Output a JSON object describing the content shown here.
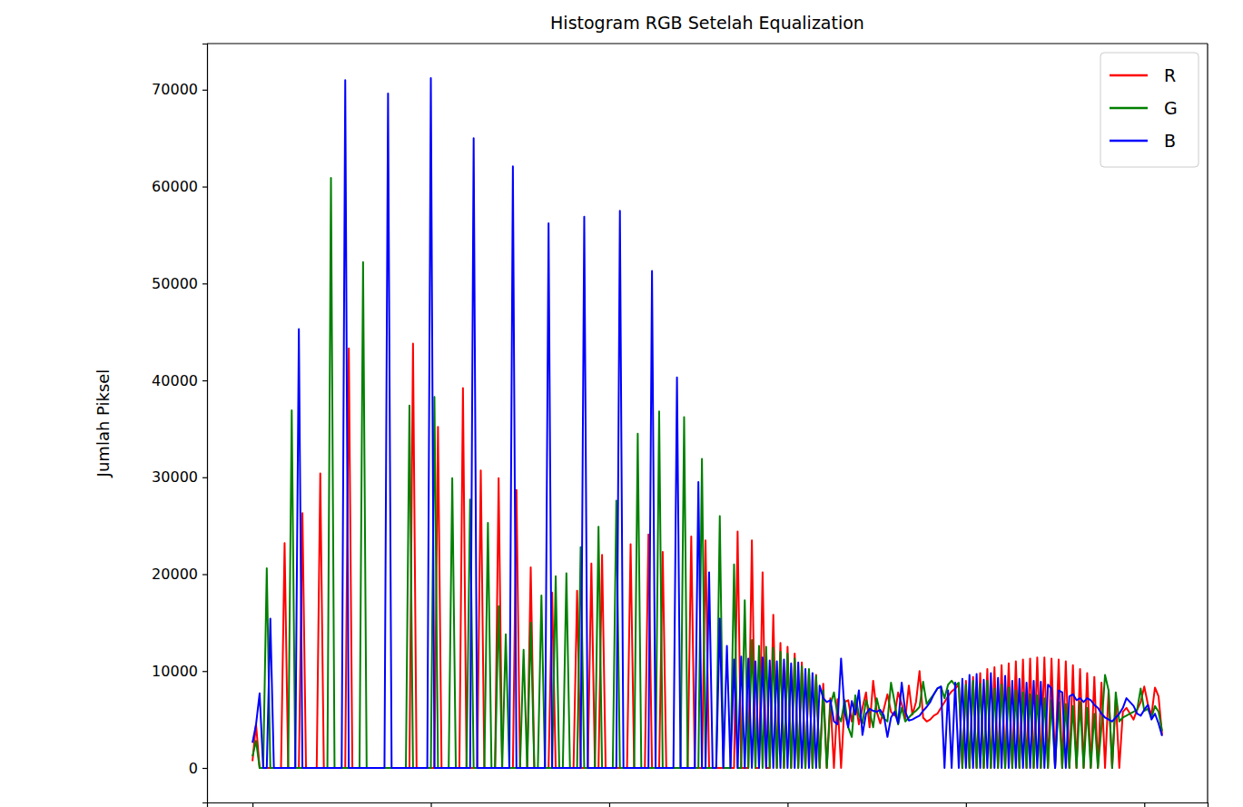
{
  "chart_data": {
    "type": "line",
    "title": "Histogram RGB Setelah Equalization",
    "y_label": "Jumlah Piksel",
    "x": [
      0,
      1,
      2,
      3,
      4,
      5,
      6,
      7,
      8,
      9,
      10,
      11,
      12,
      13,
      14,
      15,
      16,
      17,
      18,
      19,
      20,
      21,
      22,
      23,
      24,
      25,
      26,
      27,
      28,
      29,
      30,
      31,
      32,
      33,
      34,
      35,
      36,
      37,
      38,
      39,
      40,
      41,
      42,
      43,
      44,
      45,
      46,
      47,
      48,
      49,
      50,
      51,
      52,
      53,
      54,
      55,
      56,
      57,
      58,
      59,
      60,
      61,
      62,
      63,
      64,
      65,
      66,
      67,
      68,
      69,
      70,
      71,
      72,
      73,
      74,
      75,
      76,
      77,
      78,
      79,
      80,
      81,
      82,
      83,
      84,
      85,
      86,
      87,
      88,
      89,
      90,
      91,
      92,
      93,
      94,
      95,
      96,
      97,
      98,
      99,
      100,
      101,
      102,
      103,
      104,
      105,
      106,
      107,
      108,
      109,
      110,
      111,
      112,
      113,
      114,
      115,
      116,
      117,
      118,
      119,
      120,
      121,
      122,
      123,
      124,
      125,
      126,
      127,
      128,
      129,
      130,
      131,
      132,
      133,
      134,
      135,
      136,
      137,
      138,
      139,
      140,
      141,
      142,
      143,
      144,
      145,
      146,
      147,
      148,
      149,
      150,
      151,
      152,
      153,
      154,
      155,
      156,
      157,
      158,
      159,
      160,
      161,
      162,
      163,
      164,
      165,
      166,
      167,
      168,
      169,
      170,
      171,
      172,
      173,
      174,
      175,
      176,
      177,
      178,
      179,
      180,
      181,
      182,
      183,
      184,
      185,
      186,
      187,
      188,
      189,
      190,
      191,
      192,
      193,
      194,
      195,
      196,
      197,
      198,
      199,
      200,
      201,
      202,
      203,
      204,
      205,
      206,
      207,
      208,
      209,
      210,
      211,
      212,
      213,
      214,
      215,
      216,
      217,
      218,
      219,
      220,
      221,
      222,
      223,
      224,
      225,
      226,
      227,
      228,
      229,
      230,
      231,
      232,
      233,
      234,
      235,
      236,
      237,
      238,
      239,
      240,
      241,
      242,
      243,
      244,
      245,
      246,
      247,
      248,
      249,
      250,
      251,
      252,
      253,
      254,
      255
    ],
    "series": [
      {
        "name": "R",
        "color": "#ff0000",
        "values": [
          700,
          4500,
          0,
          0,
          0,
          0,
          0,
          0,
          0,
          23200,
          0,
          0,
          0,
          0,
          26300,
          0,
          0,
          0,
          0,
          30400,
          0,
          0,
          0,
          0,
          0,
          0,
          0,
          43300,
          0,
          0,
          0,
          0,
          0,
          0,
          0,
          0,
          0,
          0,
          0,
          0,
          0,
          0,
          0,
          0,
          0,
          43800,
          0,
          0,
          0,
          0,
          0,
          0,
          35200,
          0,
          0,
          0,
          0,
          0,
          0,
          39200,
          0,
          0,
          0,
          0,
          30700,
          0,
          0,
          0,
          0,
          29900,
          0,
          0,
          0,
          0,
          28700,
          0,
          0,
          0,
          20700,
          0,
          0,
          0,
          0,
          0,
          18100,
          0,
          0,
          0,
          0,
          0,
          0,
          18300,
          0,
          0,
          0,
          21100,
          0,
          0,
          22000,
          0,
          0,
          0,
          0,
          0,
          0,
          0,
          23100,
          0,
          0,
          0,
          0,
          24100,
          0,
          0,
          0,
          22300,
          0,
          0,
          0,
          0,
          0,
          0,
          0,
          23900,
          0,
          0,
          0,
          23500,
          0,
          0,
          0,
          0,
          0,
          0,
          0,
          0,
          24400,
          0,
          0,
          0,
          23500,
          0,
          0,
          20200,
          0,
          0,
          15800,
          0,
          12900,
          0,
          12500,
          0,
          11800,
          0,
          10900,
          0,
          10000,
          0,
          9600,
          0,
          8700,
          0,
          7200,
          0,
          7100,
          0,
          6800,
          7000,
          4800,
          7000,
          4500,
          6200,
          7800,
          4200,
          9000,
          5800,
          4600,
          6100,
          7600,
          5800,
          5400,
          7800,
          6600,
          5100,
          8500,
          5500,
          6800,
          10000,
          5200,
          4800,
          5000,
          5400,
          5600,
          6200,
          6800,
          7400,
          7900,
          8200,
          8600,
          0,
          9000,
          0,
          9400,
          0,
          9800,
          0,
          10200,
          0,
          10400,
          0,
          10600,
          0,
          10800,
          0,
          11000,
          0,
          11200,
          0,
          11300,
          0,
          11400,
          0,
          11400,
          0,
          11300,
          0,
          11200,
          0,
          11000,
          0,
          10600,
          0,
          10200,
          0,
          9800,
          0,
          9400,
          0,
          8800,
          0,
          8000,
          0,
          7000,
          0,
          5800,
          6200,
          5600,
          5000,
          6000,
          6800,
          8400,
          6600,
          5400,
          8300,
          7400,
          3400
        ]
      },
      {
        "name": "G",
        "color": "#008000",
        "values": [
          1200,
          2800,
          0,
          0,
          20600,
          0,
          0,
          0,
          0,
          0,
          0,
          36900,
          0,
          0,
          0,
          0,
          0,
          0,
          0,
          0,
          0,
          0,
          60900,
          0,
          0,
          0,
          0,
          0,
          0,
          0,
          0,
          52200,
          0,
          0,
          0,
          0,
          0,
          0,
          0,
          0,
          0,
          0,
          0,
          0,
          37400,
          0,
          0,
          0,
          0,
          0,
          0,
          38300,
          0,
          0,
          0,
          0,
          29900,
          0,
          0,
          0,
          0,
          27700,
          0,
          0,
          0,
          0,
          25300,
          0,
          0,
          16700,
          0,
          13800,
          0,
          0,
          0,
          0,
          12200,
          0,
          15000,
          0,
          0,
          17800,
          0,
          0,
          0,
          19800,
          0,
          0,
          20100,
          0,
          0,
          0,
          22800,
          0,
          0,
          0,
          0,
          24900,
          0,
          0,
          0,
          0,
          27600,
          0,
          0,
          0,
          0,
          0,
          34500,
          0,
          0,
          0,
          0,
          0,
          36800,
          0,
          0,
          0,
          0,
          0,
          0,
          36200,
          0,
          0,
          0,
          0,
          31900,
          0,
          0,
          0,
          0,
          26000,
          0,
          0,
          0,
          21000,
          0,
          0,
          17300,
          0,
          13200,
          0,
          12600,
          0,
          12500,
          0,
          12400,
          0,
          12000,
          0,
          11800,
          0,
          11300,
          0,
          10500,
          0,
          10200,
          0,
          9500,
          0,
          8000,
          0,
          6500,
          7800,
          5500,
          4800,
          7000,
          4200,
          3200,
          7500,
          5500,
          4600,
          7000,
          5800,
          4200,
          7200,
          5600,
          5100,
          4800,
          8800,
          6800,
          4500,
          6200,
          4800,
          5200,
          5600,
          5900,
          6300,
          8900,
          6600,
          7100,
          7600,
          8200,
          8400,
          7200,
          8600,
          9000,
          8500,
          8800,
          0,
          8600,
          0,
          9000,
          0,
          8700,
          0,
          9000,
          0,
          8200,
          0,
          8600,
          0,
          8300,
          0,
          8000,
          0,
          7800,
          0,
          7600,
          0,
          7500,
          0,
          7200,
          0,
          7000,
          0,
          6800,
          0,
          6600,
          0,
          6400,
          0,
          6800,
          0,
          6200,
          0,
          5600,
          0,
          4200,
          9600,
          8000,
          0,
          7800,
          4800,
          5200,
          5400,
          5600,
          5800,
          6000,
          8200,
          5900,
          6100,
          5200,
          6400,
          5800,
          3800
        ]
      },
      {
        "name": "B",
        "color": "#0000ff",
        "values": [
          2600,
          4500,
          7700,
          0,
          0,
          15400,
          0,
          0,
          0,
          0,
          0,
          0,
          0,
          45300,
          0,
          0,
          0,
          0,
          0,
          0,
          0,
          0,
          0,
          0,
          0,
          0,
          71000,
          0,
          0,
          0,
          0,
          0,
          0,
          0,
          0,
          0,
          0,
          0,
          69600,
          0,
          0,
          0,
          0,
          0,
          0,
          0,
          0,
          0,
          0,
          0,
          71200,
          0,
          0,
          0,
          0,
          0,
          0,
          0,
          0,
          0,
          0,
          0,
          65000,
          0,
          0,
          0,
          0,
          0,
          0,
          0,
          0,
          0,
          0,
          62100,
          0,
          0,
          0,
          0,
          0,
          0,
          0,
          0,
          0,
          56200,
          0,
          0,
          0,
          0,
          0,
          0,
          0,
          0,
          0,
          56900,
          0,
          0,
          0,
          0,
          0,
          0,
          0,
          0,
          0,
          57500,
          0,
          0,
          0,
          0,
          0,
          0,
          0,
          0,
          51300,
          0,
          0,
          0,
          0,
          0,
          0,
          40300,
          0,
          0,
          0,
          0,
          0,
          29500,
          0,
          0,
          20200,
          0,
          0,
          15400,
          0,
          12600,
          0,
          11200,
          0,
          11500,
          0,
          11300,
          0,
          11000,
          0,
          11400,
          0,
          11100,
          0,
          11000,
          0,
          11200,
          0,
          10800,
          0,
          10900,
          0,
          10200,
          0,
          9800,
          0,
          8500,
          7200,
          6800,
          7000,
          4800,
          4500,
          11300,
          5800,
          4200,
          6900,
          5500,
          8000,
          3400,
          5600,
          6100,
          5900,
          5800,
          6000,
          5400,
          3200,
          5200,
          5800,
          4600,
          8800,
          5800,
          4900,
          5000,
          5200,
          5400,
          5900,
          6300,
          6800,
          7600,
          8200,
          8400,
          0,
          8000,
          0,
          8800,
          0,
          9200,
          0,
          9600,
          0,
          9700,
          0,
          9100,
          0,
          9800,
          0,
          9300,
          0,
          9500,
          0,
          9000,
          0,
          9200,
          0,
          8800,
          0,
          9000,
          0,
          8900,
          0,
          8600,
          8200,
          0,
          8000,
          7800,
          0,
          7400,
          7600,
          7000,
          7200,
          6800,
          7200,
          7000,
          6500,
          6200,
          5600,
          5200,
          5000,
          4800,
          5200,
          5600,
          6200,
          7200,
          6800,
          6400,
          5600,
          5400,
          6000,
          6500,
          5000,
          5600,
          4600,
          3300
        ]
      }
    ],
    "xlim": [
      -12.75,
      267.75
    ],
    "xticks": [
      0,
      50,
      100,
      150,
      200,
      250
    ],
    "ylim": [
      -3560,
      74760
    ],
    "yticks": [
      0,
      10000,
      20000,
      30000,
      40000,
      50000,
      60000,
      70000
    ],
    "legend": "upper right",
    "tick_labels": "y"
  }
}
